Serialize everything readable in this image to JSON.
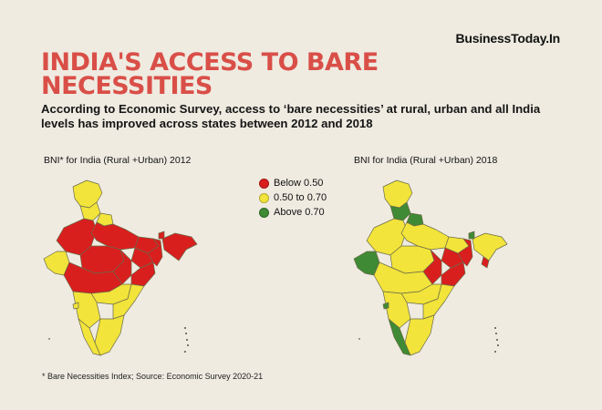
{
  "brand": "BusinessToday.In",
  "title": "INDIA'S ACCESS TO BARE NECESSITIES",
  "subtitle": "According to Economic Survey, access to ‘bare necessities’ at rural, urban and all India levels has improved across states between 2012 and 2018",
  "maps": [
    {
      "label": "BNI* for India (Rural +Urban) 2012"
    },
    {
      "label": "BNI for India (Rural +Urban) 2018"
    }
  ],
  "legend": [
    {
      "label": "Below 0.50",
      "color": "#d91e1e"
    },
    {
      "label": "0.50 to 0.70",
      "color": "#f2e43a"
    },
    {
      "label": "Above 0.70",
      "color": "#3f8a34"
    }
  ],
  "footnote": "* Bare Necessities Index; Source: Economic Survey 2020-21",
  "colors": {
    "title": "#d94f48",
    "background": "#efebe1",
    "border": "#6b6a48"
  }
}
